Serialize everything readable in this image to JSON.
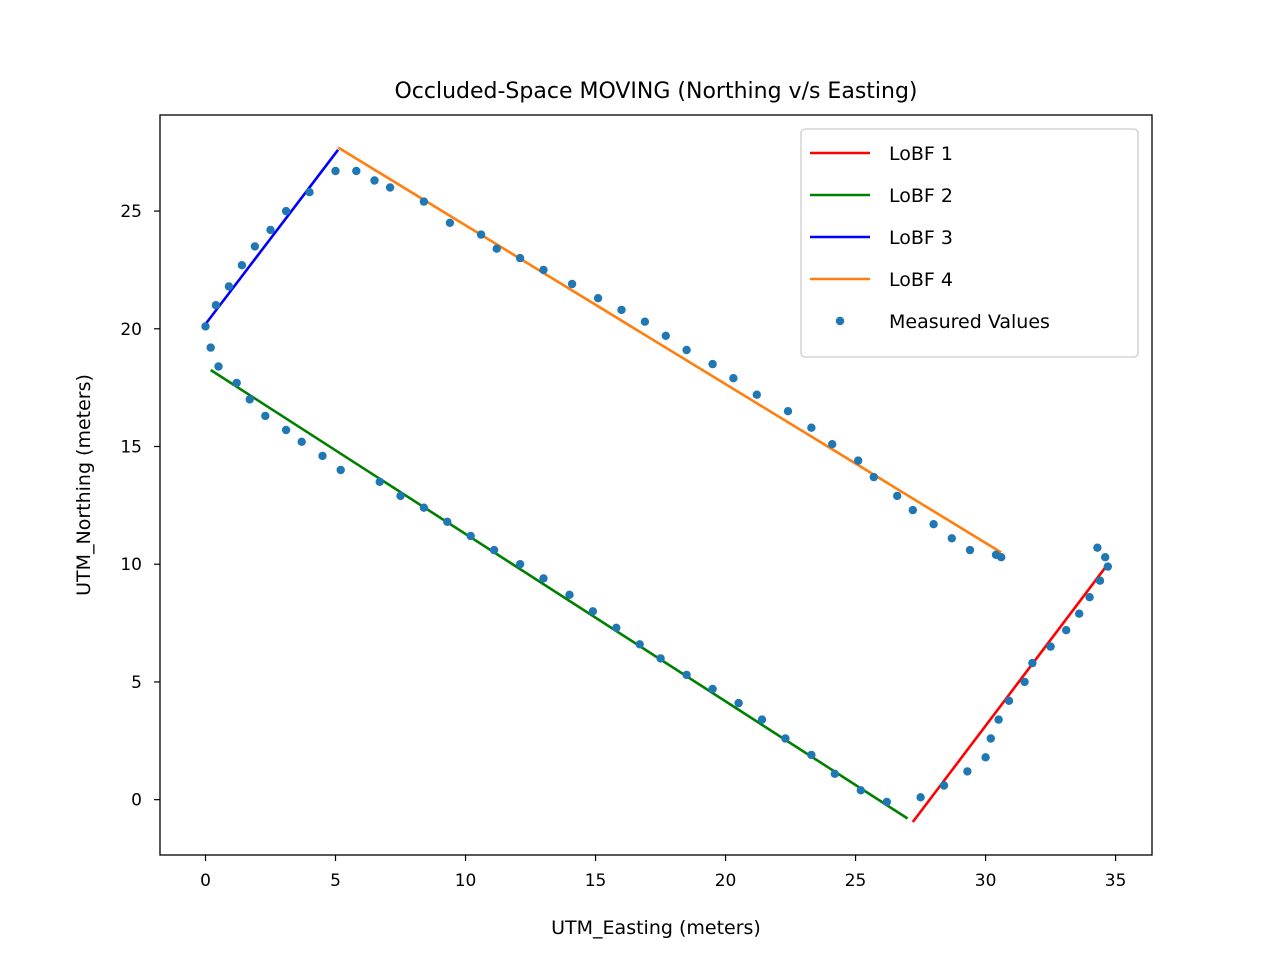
{
  "chart_data": {
    "type": "scatter",
    "title": "Occluded-Space MOVING (Northing v/s Easting)",
    "xlabel": "UTM_Easting (meters)",
    "ylabel": "UTM_Northing (meters)",
    "xlim": [
      -1.75,
      36.4
    ],
    "ylim": [
      -2.35,
      29.08
    ],
    "xticks": [
      0,
      5,
      10,
      15,
      20,
      25,
      30,
      35
    ],
    "yticks": [
      0,
      5,
      10,
      15,
      20,
      25
    ],
    "grid": false,
    "legend_placement": "top-right",
    "series": [
      {
        "name": "LoBF 1",
        "kind": "line",
        "color": "#ff0000",
        "x": [
          27.2,
          34.7
        ],
        "y": [
          -0.95,
          10.0
        ]
      },
      {
        "name": "LoBF 2",
        "kind": "line",
        "color": "#008000",
        "x": [
          0.2,
          27.0
        ],
        "y": [
          18.25,
          -0.8
        ]
      },
      {
        "name": "LoBF 3",
        "kind": "line",
        "color": "#0000ff",
        "x": [
          0.0,
          5.1
        ],
        "y": [
          20.2,
          27.6
        ]
      },
      {
        "name": "LoBF 4",
        "kind": "line",
        "color": "#ff7f0e",
        "x": [
          5.1,
          30.6
        ],
        "y": [
          27.7,
          10.5
        ]
      },
      {
        "name": "Measured Values",
        "kind": "scatter",
        "color": "#1f77b4",
        "x": [
          0.0,
          0.2,
          0.4,
          0.5,
          0.9,
          1.2,
          1.4,
          1.7,
          1.9,
          2.3,
          2.5,
          3.1,
          3.1,
          3.7,
          4.0,
          4.5,
          5.0,
          5.2,
          5.8,
          6.5,
          6.7,
          7.1,
          7.5,
          8.4,
          8.4,
          9.3,
          9.4,
          10.2,
          10.6,
          11.1,
          11.2,
          12.1,
          12.1,
          13.0,
          13.0,
          14.0,
          14.1,
          14.9,
          15.1,
          15.8,
          16.0,
          16.7,
          16.9,
          17.5,
          17.7,
          18.5,
          18.5,
          19.5,
          19.5,
          20.3,
          20.5,
          21.2,
          21.4,
          22.3,
          22.4,
          23.3,
          23.3,
          24.1,
          24.2,
          25.1,
          25.2,
          25.7,
          26.2,
          26.6,
          27.2,
          27.5,
          28.0,
          28.4,
          28.7,
          29.3,
          29.4,
          30.0,
          30.2,
          30.4,
          30.5,
          30.6,
          30.9,
          31.5,
          31.8,
          32.5,
          33.1,
          33.6,
          34.0,
          34.3,
          34.4,
          34.6,
          34.7
        ],
        "y": [
          20.1,
          19.2,
          21.0,
          18.4,
          21.8,
          17.7,
          22.7,
          17.0,
          23.5,
          16.3,
          24.2,
          15.7,
          25.0,
          15.2,
          25.8,
          14.6,
          26.7,
          14.0,
          26.7,
          26.3,
          13.5,
          26.0,
          12.9,
          12.4,
          25.4,
          11.8,
          24.5,
          11.2,
          24.0,
          10.6,
          23.4,
          23.0,
          10.0,
          9.4,
          22.5,
          8.7,
          21.9,
          8.0,
          21.3,
          7.3,
          20.8,
          6.6,
          20.3,
          6.0,
          19.7,
          5.3,
          19.1,
          4.7,
          18.5,
          17.9,
          4.1,
          17.2,
          3.4,
          2.6,
          16.5,
          1.9,
          15.8,
          15.1,
          1.1,
          14.4,
          0.4,
          13.7,
          -0.1,
          12.9,
          12.3,
          0.1,
          11.7,
          0.6,
          11.1,
          1.2,
          10.6,
          1.8,
          2.6,
          10.4,
          3.4,
          10.3,
          4.2,
          5.0,
          5.8,
          6.5,
          7.2,
          7.9,
          8.6,
          10.7,
          9.3,
          10.3,
          9.9
        ]
      }
    ]
  },
  "colors": {
    "axes": "#000000",
    "legend_border": "#cccccc",
    "background": "#ffffff"
  }
}
